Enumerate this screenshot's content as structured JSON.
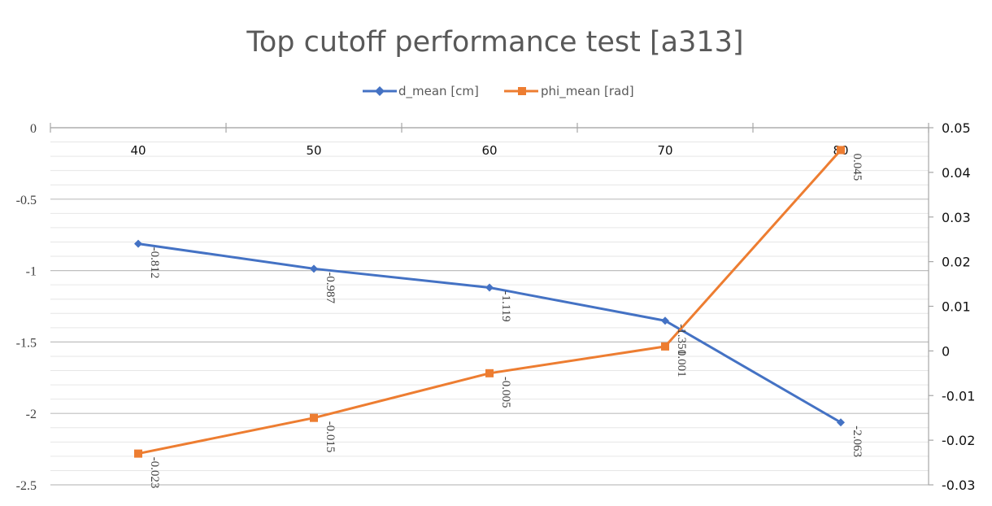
{
  "chart_data": {
    "type": "line",
    "title": "Top cutoff performance test [a313]",
    "categories": [
      "40",
      "50",
      "60",
      "70",
      "80"
    ],
    "series": [
      {
        "name": "d_mean [cm]",
        "axis": "left",
        "color": "#4472C4",
        "marker": "diamond",
        "values": [
          -0.812,
          -0.987,
          -1.119,
          -1.351,
          -2.063
        ],
        "labels": [
          "-0.812",
          "-0.987",
          "-1.119",
          "-1.351",
          "-2.063"
        ]
      },
      {
        "name": "phi_mean [rad]",
        "axis": "right",
        "color": "#ED7D31",
        "marker": "square",
        "values": [
          -0.023,
          -0.015,
          -0.005,
          0.001,
          0.045
        ],
        "labels": [
          "-0.023",
          "-0.015",
          "-0.005",
          "0.001",
          "0.045"
        ]
      }
    ],
    "y_left": {
      "min": -2.5,
      "max": 0,
      "ticks": [
        "0",
        "-0.5",
        "-1",
        "-1.5",
        "-2",
        "-2.5"
      ],
      "tick_values": [
        0,
        -0.5,
        -1,
        -1.5,
        -2,
        -2.5
      ]
    },
    "y_right": {
      "min": -0.03,
      "max": 0.05,
      "ticks": [
        "0.05",
        "0.04",
        "0.03",
        "0.02",
        "0.01",
        "0",
        "-0.01",
        "-0.02",
        "-0.03"
      ],
      "tick_values": [
        0.05,
        0.04,
        0.03,
        0.02,
        0.01,
        0,
        -0.01,
        -0.02,
        -0.03
      ]
    },
    "xlabel": "",
    "ylabel": "",
    "legend_position": "top",
    "grid": true
  }
}
